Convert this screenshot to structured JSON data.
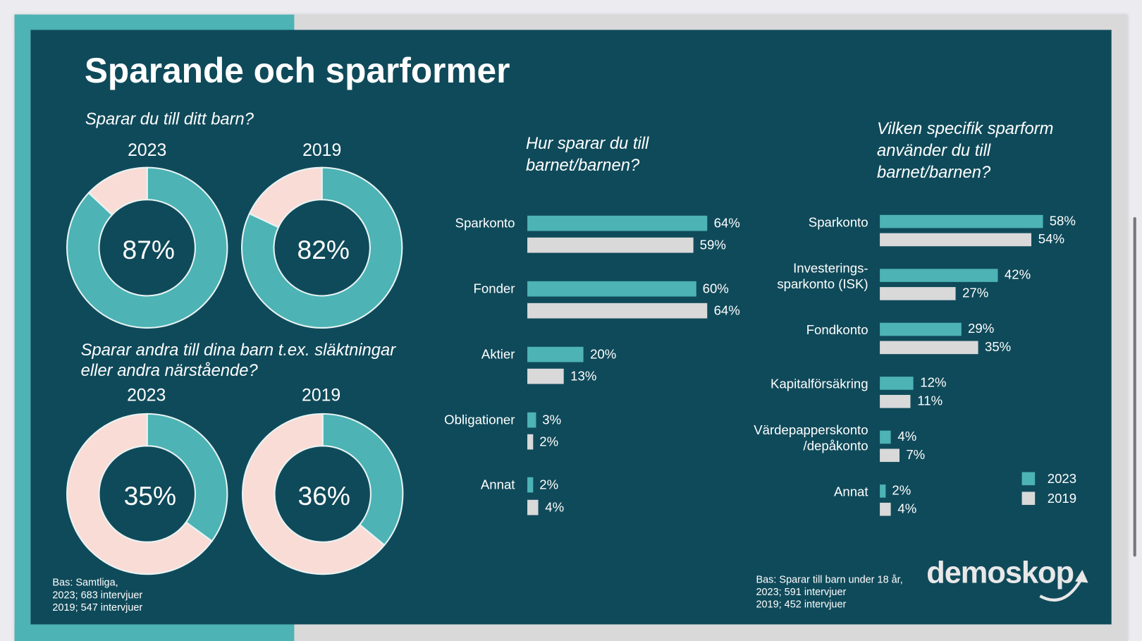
{
  "title": "Sparande och sparformer",
  "colors": {
    "c2023": "#4db3b5",
    "c2019": "#d9d9d9",
    "pink": "#fadcd6",
    "bg": "#0f4a5a"
  },
  "donuts_top": {
    "question": "Sparar du till ditt barn?",
    "items": [
      {
        "year": "2023",
        "value": 87,
        "label": "87%"
      },
      {
        "year": "2019",
        "value": 82,
        "label": "82%"
      }
    ]
  },
  "donuts_bottom": {
    "question_line1": "Sparar andra till dina barn t.ex. släktningar",
    "question_line2": "eller andra närstående?",
    "items": [
      {
        "year": "2023",
        "value": 35,
        "label": "35%"
      },
      {
        "year": "2019",
        "value": 36,
        "label": "36%"
      }
    ]
  },
  "note_left": [
    "Bas: Samtliga,",
    "2023; 683 intervjuer",
    "2019; 547 intervjuer"
  ],
  "chart_data": [
    {
      "type": "bar",
      "title_line1": "Hur sparar du till",
      "title_line2": "barnet/barnen?",
      "categories": [
        "Sparkonto",
        "Fonder",
        "Aktier",
        "Obligationer",
        "Annat"
      ],
      "series": [
        {
          "name": "2023",
          "values": [
            64,
            60,
            20,
            3,
            2
          ]
        },
        {
          "name": "2019",
          "values": [
            59,
            64,
            13,
            2,
            4
          ]
        }
      ]
    },
    {
      "type": "bar",
      "title_line1": "Vilken specifik sparform",
      "title_line2": "använder du till",
      "title_line3": "barnet/barnen?",
      "categories": [
        [
          "Sparkonto"
        ],
        [
          "Investerings-",
          "sparkonto (ISK)"
        ],
        [
          "Fondkonto"
        ],
        [
          "Kapitalförsäkring"
        ],
        [
          "Värdepapperskonto",
          "/depåkonto"
        ],
        [
          "Annat"
        ]
      ],
      "series": [
        {
          "name": "2023",
          "values": [
            58,
            42,
            29,
            12,
            4,
            2
          ]
        },
        {
          "name": "2019",
          "values": [
            54,
            27,
            35,
            11,
            7,
            4
          ]
        }
      ],
      "legend": [
        "2023",
        "2019"
      ],
      "legend_position": "bottom-right"
    }
  ],
  "note_right": [
    "Bas: Sparar till barn under 18 år,",
    "2023; 591 intervjuer",
    "2019; 452 intervjuer"
  ],
  "logo": "demoskop"
}
